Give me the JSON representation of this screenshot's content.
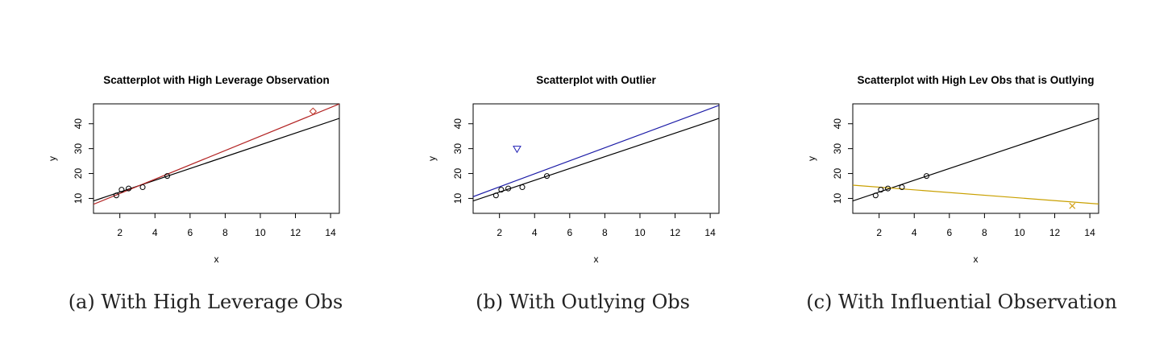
{
  "chart_data": [
    {
      "type": "scatter",
      "title": "Scatterplot with High Leverage Observation",
      "xlabel": "x",
      "ylabel": "y",
      "xlim": [
        0.5,
        14.5
      ],
      "ylim": [
        4,
        48
      ],
      "xticks": [
        2,
        4,
        6,
        8,
        10,
        12,
        14
      ],
      "yticks": [
        10,
        20,
        30,
        40
      ],
      "points": [
        {
          "x": 1.8,
          "y": 11.2,
          "marker": "circle",
          "color": "#000000"
        },
        {
          "x": 2.1,
          "y": 13.5,
          "marker": "circle",
          "color": "#000000"
        },
        {
          "x": 2.5,
          "y": 14.0,
          "marker": "circle",
          "color": "#000000"
        },
        {
          "x": 3.3,
          "y": 14.5,
          "marker": "circle",
          "color": "#000000"
        },
        {
          "x": 4.7,
          "y": 19.0,
          "marker": "circle",
          "color": "#000000"
        },
        {
          "x": 13.0,
          "y": 45.0,
          "marker": "diamond",
          "color": "#c0392b"
        }
      ],
      "lines": [
        {
          "intercept": 7.8,
          "slope": 2.37,
          "color": "#000000"
        },
        {
          "intercept": 6.2,
          "slope": 2.88,
          "color": "#b22222"
        }
      ]
    },
    {
      "type": "scatter",
      "title": "Scatterplot with Outlier",
      "xlabel": "x",
      "ylabel": "y",
      "xlim": [
        0.5,
        14.5
      ],
      "ylim": [
        4,
        48
      ],
      "xticks": [
        2,
        4,
        6,
        8,
        10,
        12,
        14
      ],
      "yticks": [
        10,
        20,
        30,
        40
      ],
      "points": [
        {
          "x": 1.8,
          "y": 11.2,
          "marker": "circle",
          "color": "#000000"
        },
        {
          "x": 2.1,
          "y": 13.5,
          "marker": "circle",
          "color": "#000000"
        },
        {
          "x": 2.5,
          "y": 14.0,
          "marker": "circle",
          "color": "#000000"
        },
        {
          "x": 3.3,
          "y": 14.5,
          "marker": "circle",
          "color": "#000000"
        },
        {
          "x": 4.7,
          "y": 19.0,
          "marker": "circle",
          "color": "#000000"
        },
        {
          "x": 3.0,
          "y": 29.8,
          "marker": "triangle-down",
          "color": "#1f1fb4"
        }
      ],
      "lines": [
        {
          "intercept": 7.8,
          "slope": 2.37,
          "color": "#000000"
        },
        {
          "intercept": 9.4,
          "slope": 2.62,
          "color": "#1a1aa6"
        }
      ]
    },
    {
      "type": "scatter",
      "title": "Scatterplot with High Lev Obs that is Outlying",
      "xlabel": "x",
      "ylabel": "y",
      "xlim": [
        0.5,
        14.5
      ],
      "ylim": [
        4,
        48
      ],
      "xticks": [
        2,
        4,
        6,
        8,
        10,
        12,
        14
      ],
      "yticks": [
        10,
        20,
        30,
        40
      ],
      "points": [
        {
          "x": 1.8,
          "y": 11.2,
          "marker": "circle",
          "color": "#000000"
        },
        {
          "x": 2.1,
          "y": 13.5,
          "marker": "circle",
          "color": "#000000"
        },
        {
          "x": 2.5,
          "y": 14.0,
          "marker": "circle",
          "color": "#000000"
        },
        {
          "x": 3.3,
          "y": 14.5,
          "marker": "circle",
          "color": "#000000"
        },
        {
          "x": 4.7,
          "y": 19.0,
          "marker": "circle",
          "color": "#000000"
        },
        {
          "x": 13.0,
          "y": 7.0,
          "marker": "x",
          "color": "#d4a017"
        }
      ],
      "lines": [
        {
          "intercept": 7.8,
          "slope": 2.37,
          "color": "#000000"
        },
        {
          "intercept": 15.6,
          "slope": -0.54,
          "color": "#c9a000"
        }
      ]
    }
  ],
  "captions": [
    "(a) With High Leverage Obs",
    "(b) With Outlying Obs",
    "(c) With Influential Observation"
  ]
}
